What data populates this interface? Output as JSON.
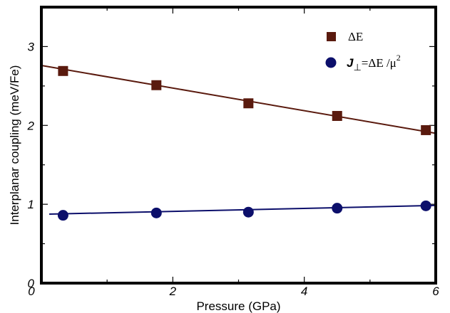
{
  "chart_data": {
    "type": "scatter",
    "xlabel": "Pressure (GPa)",
    "ylabel": "Interplanar coupling (meV/Fe)",
    "xlim": [
      0,
      6
    ],
    "ylim": [
      0,
      3.5
    ],
    "x_ticks": [
      0,
      2,
      4,
      6
    ],
    "x_tick_labels": [
      "0",
      "2",
      "4",
      "6"
    ],
    "y_ticks": [
      0,
      1,
      2,
      3
    ],
    "y_tick_labels": [
      "0",
      "1",
      "2",
      "3"
    ],
    "grid": false,
    "legend_position": "top-right",
    "series": [
      {
        "name": "ΔE",
        "marker": "square",
        "color": "#5a1a0e",
        "x": [
          0.33,
          1.75,
          3.15,
          4.5,
          5.85
        ],
        "y": [
          2.69,
          2.51,
          2.28,
          2.12,
          1.94
        ],
        "fit_line": {
          "x": [
            0,
            6
          ],
          "y": [
            2.76,
            1.9
          ]
        }
      },
      {
        "name": "J⊥=ΔE/μ²",
        "marker": "circle",
        "color": "#0c0f6b",
        "x": [
          0.33,
          1.75,
          3.15,
          4.5,
          5.85
        ],
        "y": [
          0.86,
          0.89,
          0.9,
          0.95,
          0.98
        ],
        "fit_line": {
          "x": [
            0.12,
            6
          ],
          "y": [
            0.875,
            0.985
          ]
        }
      }
    ],
    "legend": {
      "items": [
        {
          "label": "ΔE"
        },
        {
          "symbol": "J",
          "subscript": "⊥",
          "rest": "=ΔE /μ",
          "superscript": "2"
        }
      ]
    }
  }
}
